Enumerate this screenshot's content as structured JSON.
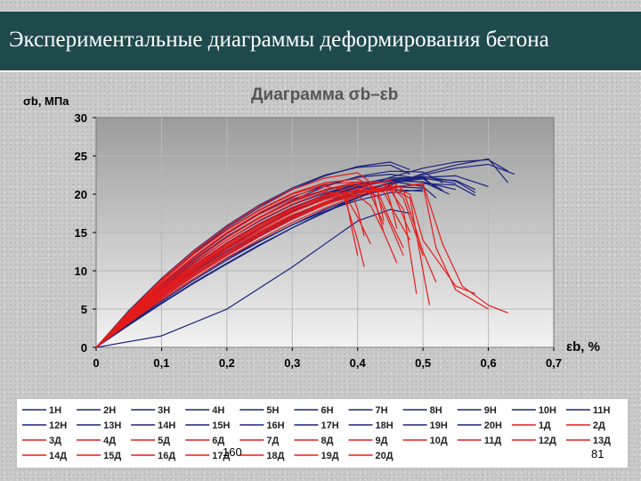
{
  "slide": {
    "title": "Экспериментальные диаграммы деформирования бетона",
    "left_number": "160",
    "right_number": "81"
  },
  "chart_data": {
    "type": "line",
    "title": "Диаграмма σb–εb",
    "ylabel": "σb, МПа",
    "xlabel": "εb, %",
    "xlim": [
      0,
      0.7
    ],
    "ylim": [
      0,
      30
    ],
    "x_ticks": [
      "0",
      "0,1",
      "0,2",
      "0,3",
      "0,4",
      "0,5",
      "0,6",
      "0,7"
    ],
    "y_ticks": [
      "0",
      "5",
      "10",
      "15",
      "20",
      "25",
      "30"
    ],
    "grid": true,
    "legend_position": "bottom",
    "colors": {
      "H": "#1a237e",
      "Д": "#e31b1b",
      "plot_bg_top": "#9c9c9c",
      "plot_bg_bottom": "#f2f2f2"
    },
    "series": [
      {
        "name": "1Н",
        "x": [
          0,
          0.05,
          0.1,
          0.15,
          0.2,
          0.25,
          0.3,
          0.35,
          0.4,
          0.45,
          0.5,
          0.55,
          0.6
        ],
        "y": [
          0,
          3.5,
          6.6,
          9.5,
          12.2,
          14.6,
          16.8,
          18.6,
          20.2,
          21.4,
          22.2,
          22.4,
          21.0
        ]
      },
      {
        "name": "2Н",
        "x": [
          0,
          0.05,
          0.1,
          0.15,
          0.2,
          0.25,
          0.3,
          0.35,
          0.4,
          0.45,
          0.5,
          0.55,
          0.58
        ],
        "y": [
          0,
          3.8,
          7.2,
          10.3,
          13.1,
          15.6,
          17.8,
          19.6,
          21.0,
          21.9,
          22.3,
          21.7,
          20.2
        ]
      },
      {
        "name": "3Н",
        "x": [
          0,
          0.05,
          0.1,
          0.15,
          0.2,
          0.25,
          0.3,
          0.35,
          0.4,
          0.45,
          0.5,
          0.53
        ],
        "y": [
          0,
          4.2,
          8.0,
          11.4,
          14.4,
          17.0,
          19.2,
          21.0,
          22.3,
          23.0,
          22.9,
          21.5
        ]
      },
      {
        "name": "4Н",
        "x": [
          0,
          0.05,
          0.1,
          0.15,
          0.2,
          0.25,
          0.3,
          0.35,
          0.4,
          0.45,
          0.48
        ],
        "y": [
          0,
          4.6,
          8.7,
          12.4,
          15.6,
          18.3,
          20.6,
          22.4,
          23.6,
          24.2,
          23.2
        ]
      },
      {
        "name": "5Н",
        "x": [
          0,
          0.05,
          0.1,
          0.15,
          0.2,
          0.25,
          0.3,
          0.35,
          0.4,
          0.45,
          0.5
        ],
        "y": [
          0,
          3.2,
          6.2,
          9.0,
          11.6,
          13.9,
          16.0,
          17.8,
          19.2,
          20.2,
          20.6
        ]
      },
      {
        "name": "6Н",
        "x": [
          0,
          0.05,
          0.1,
          0.15,
          0.2,
          0.25,
          0.3,
          0.35,
          0.4,
          0.45,
          0.5,
          0.55,
          0.6,
          0.63
        ],
        "y": [
          0,
          3.0,
          5.8,
          8.5,
          11.0,
          13.4,
          15.6,
          17.6,
          19.5,
          21.2,
          22.7,
          23.8,
          24.6,
          21.5
        ]
      },
      {
        "name": "7Н",
        "x": [
          0,
          0.05,
          0.1,
          0.15,
          0.2,
          0.25,
          0.3,
          0.35,
          0.4,
          0.45,
          0.5,
          0.52
        ],
        "y": [
          0,
          3.9,
          7.4,
          10.6,
          13.5,
          16.0,
          18.2,
          20.0,
          21.3,
          22.1,
          22.2,
          20.8
        ]
      },
      {
        "name": "8Н",
        "x": [
          0,
          0.05,
          0.1,
          0.15,
          0.2,
          0.25,
          0.3,
          0.35,
          0.4,
          0.45,
          0.5,
          0.53
        ],
        "y": [
          0,
          4.4,
          8.3,
          11.8,
          14.9,
          17.5,
          19.6,
          21.2,
          22.2,
          22.6,
          22.0,
          20.5
        ]
      },
      {
        "name": "9Н",
        "x": [
          0,
          0.05,
          0.1,
          0.15,
          0.2,
          0.25,
          0.3,
          0.35,
          0.4,
          0.45,
          0.5,
          0.55,
          0.6,
          0.63
        ],
        "y": [
          0,
          3.3,
          6.4,
          9.3,
          12.0,
          14.5,
          16.8,
          18.9,
          20.7,
          22.2,
          23.4,
          24.2,
          24.5,
          23.0
        ]
      },
      {
        "name": "10Н",
        "x": [
          0,
          0.05,
          0.1,
          0.15,
          0.2,
          0.25,
          0.3,
          0.35,
          0.4,
          0.45,
          0.5
        ],
        "y": [
          0,
          3.6,
          6.9,
          9.9,
          12.6,
          15.0,
          17.1,
          18.9,
          20.2,
          21.0,
          20.8
        ]
      },
      {
        "name": "11Н",
        "x": [
          0,
          0.05,
          0.1,
          0.15,
          0.2,
          0.25,
          0.3,
          0.35,
          0.4,
          0.45,
          0.5,
          0.54
        ],
        "y": [
          0,
          4.0,
          7.6,
          10.8,
          13.6,
          16.1,
          18.2,
          19.9,
          21.1,
          21.7,
          21.6,
          20.0
        ]
      },
      {
        "name": "12Н",
        "x": [
          0,
          0.05,
          0.1,
          0.15,
          0.2,
          0.25,
          0.3,
          0.35,
          0.4,
          0.45,
          0.5,
          0.52
        ],
        "y": [
          0,
          4.3,
          8.1,
          11.5,
          14.5,
          17.0,
          19.0,
          20.5,
          21.4,
          21.7,
          21.0,
          19.5
        ]
      },
      {
        "name": "13Н",
        "x": [
          0,
          0.05,
          0.1,
          0.15,
          0.2,
          0.25,
          0.3,
          0.35,
          0.4,
          0.45,
          0.5,
          0.55,
          0.58
        ],
        "y": [
          0,
          3.4,
          6.6,
          9.6,
          12.3,
          14.8,
          17.0,
          18.9,
          20.4,
          21.5,
          22.0,
          21.8,
          20.6
        ]
      },
      {
        "name": "14Н",
        "x": [
          0,
          0.05,
          0.1,
          0.15,
          0.2,
          0.25,
          0.3,
          0.35,
          0.4,
          0.45,
          0.48
        ],
        "y": [
          0,
          4.8,
          9.0,
          12.7,
          15.9,
          18.6,
          20.8,
          22.5,
          23.5,
          23.8,
          22.6
        ]
      },
      {
        "name": "15Н",
        "x": [
          0,
          0.05,
          0.1,
          0.15,
          0.2,
          0.25,
          0.3,
          0.35,
          0.4,
          0.45,
          0.5,
          0.55
        ],
        "y": [
          0,
          3.7,
          7.1,
          10.2,
          13.0,
          15.5,
          17.7,
          19.5,
          20.9,
          21.8,
          22.1,
          21.4
        ]
      },
      {
        "name": "16Н",
        "x": [
          0,
          0.05,
          0.1,
          0.15,
          0.2,
          0.25,
          0.3,
          0.35,
          0.4,
          0.45,
          0.5,
          0.55,
          0.58
        ],
        "y": [
          0,
          3.1,
          6.0,
          8.8,
          11.4,
          13.8,
          16.0,
          18.0,
          19.6,
          20.8,
          21.4,
          21.2,
          19.8
        ]
      },
      {
        "name": "17Н",
        "x": [
          0,
          0.05,
          0.1,
          0.15,
          0.2,
          0.25,
          0.3,
          0.35,
          0.4,
          0.45,
          0.5
        ],
        "y": [
          0,
          3.5,
          6.8,
          9.8,
          12.5,
          14.9,
          17.0,
          18.7,
          19.9,
          20.6,
          20.4
        ]
      },
      {
        "name": "18Н",
        "x": [
          0,
          0.05,
          0.1,
          0.15,
          0.2,
          0.25,
          0.3,
          0.35,
          0.4,
          0.45,
          0.5,
          0.55,
          0.6,
          0.64
        ],
        "y": [
          0,
          2.9,
          5.7,
          8.4,
          10.9,
          13.3,
          15.6,
          17.7,
          19.6,
          21.2,
          22.5,
          23.4,
          23.9,
          22.6
        ]
      },
      {
        "name": "19Н",
        "x": [
          0,
          0.1,
          0.2,
          0.3,
          0.4,
          0.45,
          0.48
        ],
        "y": [
          0,
          1.5,
          5.0,
          10.5,
          16.5,
          18.0,
          17.5
        ]
      },
      {
        "name": "20Н",
        "x": [
          0,
          0.05,
          0.1,
          0.15,
          0.2,
          0.25,
          0.3,
          0.35,
          0.4,
          0.45,
          0.5,
          0.55
        ],
        "y": [
          0,
          4.1,
          7.8,
          11.1,
          14.0,
          16.5,
          18.6,
          20.2,
          21.3,
          21.8,
          21.6,
          20.6
        ]
      },
      {
        "name": "1Д",
        "x": [
          0,
          0.05,
          0.1,
          0.15,
          0.2,
          0.25,
          0.3,
          0.35,
          0.4,
          0.42,
          0.44,
          0.46
        ],
        "y": [
          0,
          3.6,
          6.9,
          10.0,
          12.8,
          15.2,
          17.3,
          18.9,
          19.8,
          18.5,
          15.0,
          11.0
        ]
      },
      {
        "name": "2Д",
        "x": [
          0,
          0.05,
          0.1,
          0.15,
          0.2,
          0.25,
          0.3,
          0.35,
          0.4,
          0.43,
          0.45,
          0.47
        ],
        "y": [
          0,
          3.9,
          7.4,
          10.6,
          13.5,
          16.0,
          18.1,
          19.7,
          20.6,
          19.8,
          16.0,
          12.0
        ]
      },
      {
        "name": "3Д",
        "x": [
          0,
          0.05,
          0.1,
          0.15,
          0.2,
          0.25,
          0.3,
          0.35,
          0.38,
          0.4,
          0.41
        ],
        "y": [
          0,
          4.3,
          8.2,
          11.7,
          14.8,
          17.4,
          19.4,
          20.5,
          19.5,
          14.0,
          10.5
        ]
      },
      {
        "name": "4Д",
        "x": [
          0,
          0.05,
          0.1,
          0.15,
          0.2,
          0.25,
          0.3,
          0.35,
          0.4,
          0.45,
          0.48,
          0.5,
          0.51
        ],
        "y": [
          0,
          3.4,
          6.6,
          9.6,
          12.3,
          14.8,
          17.0,
          18.8,
          20.1,
          20.8,
          19.5,
          10.0,
          5.5
        ]
      },
      {
        "name": "5Д",
        "x": [
          0,
          0.05,
          0.1,
          0.15,
          0.2,
          0.25,
          0.3,
          0.35,
          0.4,
          0.45,
          0.47,
          0.49
        ],
        "y": [
          0,
          3.7,
          7.1,
          10.3,
          13.1,
          15.6,
          17.7,
          19.3,
          20.3,
          20.5,
          18.0,
          7.0
        ]
      },
      {
        "name": "6Д",
        "x": [
          0,
          0.05,
          0.1,
          0.15,
          0.2,
          0.25,
          0.3,
          0.35,
          0.4,
          0.42,
          0.44
        ],
        "y": [
          0,
          4.5,
          8.6,
          12.2,
          15.3,
          17.9,
          20.0,
          21.3,
          21.6,
          20.0,
          16.0
        ]
      },
      {
        "name": "7Д",
        "x": [
          0,
          0.05,
          0.1,
          0.15,
          0.2,
          0.25,
          0.3,
          0.35,
          0.4,
          0.45,
          0.5,
          0.52,
          0.55,
          0.6
        ],
        "y": [
          0,
          3.3,
          6.4,
          9.3,
          12.0,
          14.5,
          16.7,
          18.6,
          20.1,
          21.0,
          21.2,
          13.0,
          7.5,
          5.0
        ]
      },
      {
        "name": "8Д",
        "x": [
          0,
          0.05,
          0.1,
          0.15,
          0.2,
          0.25,
          0.3,
          0.35,
          0.4,
          0.45,
          0.5,
          0.53,
          0.56,
          0.6,
          0.63
        ],
        "y": [
          0,
          3.2,
          6.2,
          9.0,
          11.7,
          14.1,
          16.3,
          18.2,
          19.8,
          20.9,
          21.4,
          13.5,
          8.0,
          5.5,
          4.5
        ]
      },
      {
        "name": "9Д",
        "x": [
          0,
          0.05,
          0.1,
          0.15,
          0.2,
          0.25,
          0.3,
          0.35,
          0.38,
          0.4,
          0.42
        ],
        "y": [
          0,
          4.0,
          7.7,
          11.0,
          14.0,
          16.6,
          18.7,
          20.3,
          20.0,
          17.0,
          13.5
        ]
      },
      {
        "name": "10Д",
        "x": [
          0,
          0.05,
          0.1,
          0.15,
          0.2,
          0.25,
          0.3,
          0.35,
          0.4,
          0.43,
          0.45,
          0.47
        ],
        "y": [
          0,
          4.2,
          8.0,
          11.4,
          14.4,
          17.0,
          19.1,
          20.6,
          21.4,
          20.5,
          16.5,
          13.0
        ]
      },
      {
        "name": "11Д",
        "x": [
          0,
          0.05,
          0.1,
          0.15,
          0.2,
          0.25,
          0.3,
          0.35,
          0.4,
          0.44,
          0.46,
          0.48
        ],
        "y": [
          0,
          3.8,
          7.3,
          10.5,
          13.3,
          15.8,
          17.9,
          19.5,
          20.5,
          20.3,
          17.0,
          14.0
        ]
      },
      {
        "name": "12Д",
        "x": [
          0,
          0.05,
          0.1,
          0.15,
          0.2,
          0.25,
          0.3,
          0.35,
          0.38,
          0.39,
          0.4
        ],
        "y": [
          0,
          4.4,
          8.4,
          11.9,
          15.0,
          17.6,
          19.7,
          21.0,
          20.6,
          16.0,
          12.0
        ]
      },
      {
        "name": "13Д",
        "x": [
          0,
          0.05,
          0.1,
          0.15,
          0.2,
          0.25,
          0.3,
          0.35,
          0.4,
          0.45,
          0.47,
          0.5
        ],
        "y": [
          0,
          3.5,
          6.8,
          9.8,
          12.5,
          15.0,
          17.2,
          19.0,
          20.3,
          21.0,
          19.5,
          12.0
        ]
      },
      {
        "name": "14Д",
        "x": [
          0,
          0.05,
          0.1,
          0.15,
          0.2,
          0.25,
          0.3,
          0.35,
          0.4,
          0.42,
          0.43,
          0.44
        ],
        "y": [
          0,
          4.7,
          8.9,
          12.6,
          15.8,
          18.5,
          20.6,
          22.1,
          22.8,
          21.5,
          18.0,
          15.0
        ]
      },
      {
        "name": "15Д",
        "x": [
          0,
          0.05,
          0.1,
          0.15,
          0.2,
          0.25,
          0.3,
          0.35,
          0.4,
          0.45,
          0.46,
          0.48
        ],
        "y": [
          0,
          3.6,
          7.0,
          10.1,
          12.9,
          15.4,
          17.6,
          19.4,
          20.7,
          21.3,
          19.0,
          15.0
        ]
      },
      {
        "name": "16Д",
        "x": [
          0,
          0.05,
          0.1,
          0.15,
          0.2,
          0.25,
          0.3,
          0.35,
          0.4,
          0.44,
          0.45,
          0.46
        ],
        "y": [
          0,
          4.1,
          7.9,
          11.3,
          14.3,
          16.9,
          19.0,
          20.6,
          21.6,
          21.6,
          19.0,
          15.5
        ]
      },
      {
        "name": "17Д",
        "x": [
          0,
          0.05,
          0.1,
          0.15,
          0.2,
          0.25,
          0.3,
          0.35,
          0.39,
          0.4,
          0.41
        ],
        "y": [
          0,
          3.9,
          7.5,
          10.8,
          13.7,
          16.2,
          18.3,
          19.9,
          20.3,
          18.0,
          14.5
        ]
      },
      {
        "name": "18Д",
        "x": [
          0,
          0.05,
          0.1,
          0.15,
          0.2,
          0.25,
          0.3,
          0.35,
          0.4,
          0.45,
          0.48,
          0.5,
          0.55,
          0.58
        ],
        "y": [
          0,
          3.4,
          6.6,
          9.5,
          12.2,
          14.7,
          16.9,
          18.7,
          20.1,
          21.0,
          20.0,
          14.0,
          8.0,
          7.0
        ]
      },
      {
        "name": "19Д",
        "x": [
          0,
          0.05,
          0.1,
          0.15,
          0.2,
          0.25,
          0.3,
          0.35,
          0.4,
          0.43,
          0.44
        ],
        "y": [
          0,
          4.6,
          8.7,
          12.3,
          15.4,
          18.0,
          20.1,
          21.5,
          22.0,
          20.5,
          16.5
        ]
      },
      {
        "name": "20Д",
        "x": [
          0,
          0.05,
          0.1,
          0.15,
          0.2,
          0.25,
          0.3,
          0.35,
          0.4,
          0.45,
          0.47,
          0.5,
          0.52
        ],
        "y": [
          0,
          3.7,
          7.2,
          10.4,
          13.3,
          15.8,
          18.0,
          19.8,
          21.1,
          21.8,
          20.5,
          12.5,
          8.5
        ]
      }
    ]
  }
}
